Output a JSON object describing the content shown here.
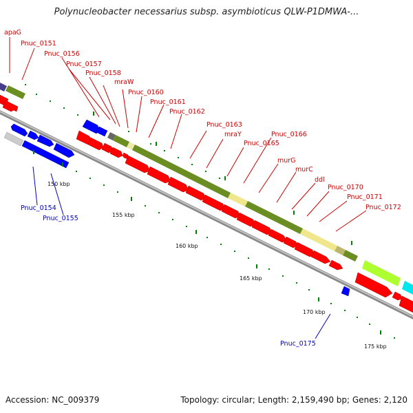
{
  "title": "Polynucleobacter necessarius subsp. asymbioticus QLW-P1DMWA-...",
  "footer": {
    "accession": "Accession: NC_009379",
    "summary": "Topology: circular; Length: 2,159,490 bp; Genes: 2,120"
  },
  "colors": {
    "forward_gene": "#ff0000",
    "reverse_gene": "#0000ff",
    "cog_olive": "#6b8e23",
    "cog_khaki": "#f0e68c",
    "backbone": "#999999",
    "tick_green": "#008000",
    "label_red": "#cc0000",
    "label_blue": "#0000bb"
  },
  "scale_ticks": [
    {
      "label": "150 kbp",
      "kbp": 150
    },
    {
      "label": "155 kbp",
      "kbp": 155
    },
    {
      "label": "160 kbp",
      "kbp": 160
    },
    {
      "label": "165 kbp",
      "kbp": 165
    },
    {
      "label": "170 kbp",
      "kbp": 170
    },
    {
      "label": "175 kbp",
      "kbp": 175
    }
  ],
  "gene_labels_forward": [
    "apaG",
    "Pnuc_0151",
    "Pnuc_0156",
    "Pnuc_0157",
    "Pnuc_0158",
    "mraW",
    "Pnuc_0160",
    "Pnuc_0161",
    "Pnuc_0162",
    "Pnuc_0163",
    "mraY",
    "Pnuc_0165",
    "Pnuc_0166",
    "murG",
    "murC",
    "ddl",
    "Pnuc_0170",
    "Pnuc_0171",
    "Pnuc_0172"
  ],
  "gene_labels_reverse": [
    "Pnuc_0154",
    "Pnuc_0155",
    "Pnuc_0175"
  ]
}
